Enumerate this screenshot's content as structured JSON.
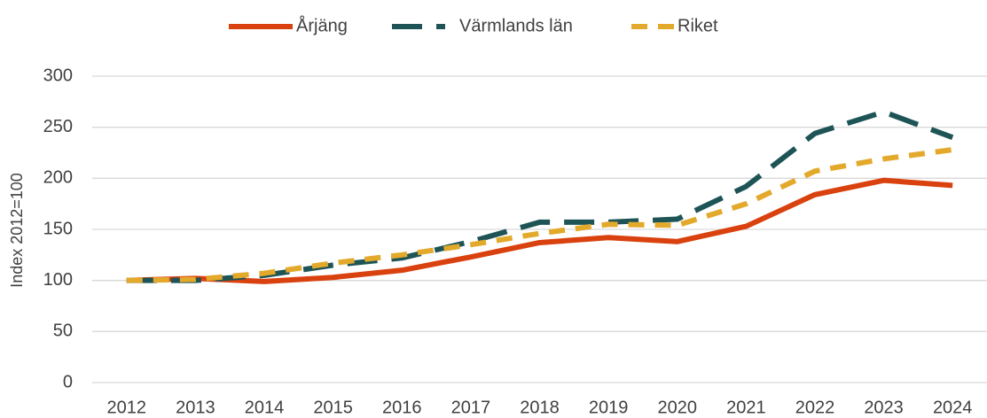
{
  "chart_data": {
    "type": "line",
    "y_label": "Index 2012=100",
    "categories": [
      "2012",
      "2013",
      "2014",
      "2015",
      "2016",
      "2017",
      "2018",
      "2019",
      "2020",
      "2021",
      "2022",
      "2023",
      "2024"
    ],
    "series": [
      {
        "name": "Årjäng",
        "color": "#d9410e",
        "values": [
          100,
          102,
          99,
          103,
          110,
          123,
          137,
          142,
          138,
          153,
          184,
          198,
          193
        ]
      },
      {
        "name": "Värmlands län",
        "color": "#1e5456",
        "values": [
          100,
          100,
          105,
          115,
          122,
          138,
          157,
          157,
          160,
          192,
          244,
          265,
          240
        ]
      },
      {
        "name": "Riket",
        "color": "#e3a92b",
        "values": [
          100,
          101,
          107,
          117,
          125,
          135,
          146,
          155,
          154,
          175,
          207,
          219,
          228
        ]
      }
    ],
    "ylim": [
      0,
      300
    ],
    "yticks": [
      0,
      50,
      100,
      150,
      200,
      250,
      300
    ],
    "grid": true,
    "legend": "top"
  }
}
